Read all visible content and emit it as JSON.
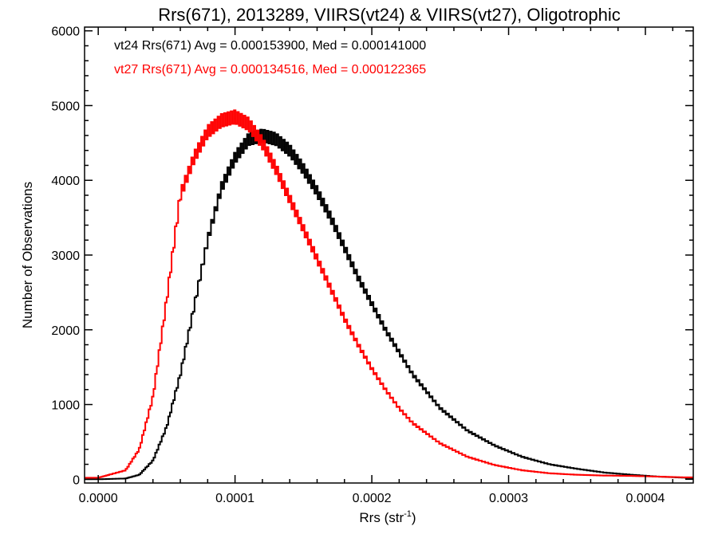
{
  "chart_data": {
    "type": "histogram",
    "title": "Rrs(671), 2013289, VIIRS(vt24) & VIIRS(vt27), Oligotrophic",
    "xlabel_main": "Rrs (str",
    "xlabel_sup": "-1",
    "xlabel_close": ")",
    "ylabel": "Number of Observations",
    "xlim": [
      -1e-05,
      0.000435
    ],
    "ylim": [
      -50,
      6050
    ],
    "x_ticks": [
      0.0,
      0.0001,
      0.0002,
      0.0003,
      0.0004
    ],
    "x_tick_labels": [
      "0.0000",
      "0.0001",
      "0.0002",
      "0.0003",
      "0.0004"
    ],
    "y_ticks": [
      0,
      1000,
      2000,
      3000,
      4000,
      5000,
      6000
    ],
    "y_tick_labels": [
      "0",
      "1000",
      "2000",
      "3000",
      "4000",
      "5000",
      "6000"
    ],
    "annotations": [
      {
        "text": "vt24 Rrs(671) Avg = 0.000153900, Med = 0.000141000",
        "color": "#000000"
      },
      {
        "text": "vt27 Rrs(671) Avg = 0.000134516, Med = 0.000122365",
        "color": "#ff0000"
      }
    ],
    "series": [
      {
        "color": "#000000",
        "x": [
          0.0,
          2e-05,
          3e-05,
          4e-05,
          5e-05,
          6e-05,
          7e-05,
          8e-05,
          9e-05,
          0.0001,
          0.00011,
          0.00012,
          0.00013,
          0.00014,
          0.00015,
          0.00016,
          0.00017,
          0.00018,
          0.00019,
          0.0002,
          0.00021,
          0.00022,
          0.00023,
          0.00025,
          0.00027,
          0.00029,
          0.00031,
          0.00033,
          0.00035,
          0.00037,
          0.00039,
          0.00041,
          0.00043
        ],
        "y": [
          0,
          10,
          60,
          250,
          700,
          1400,
          2300,
          3200,
          3900,
          4300,
          4550,
          4600,
          4550,
          4400,
          4150,
          3850,
          3500,
          3100,
          2700,
          2350,
          2000,
          1700,
          1400,
          950,
          650,
          450,
          300,
          200,
          140,
          90,
          60,
          35,
          20
        ]
      },
      {
        "color": "#ff0000",
        "x": [
          0.0,
          2e-05,
          3e-05,
          4e-05,
          5e-05,
          6e-05,
          7e-05,
          8e-05,
          9e-05,
          0.0001,
          0.00011,
          0.00012,
          0.00013,
          0.00014,
          0.00015,
          0.00016,
          0.00017,
          0.00018,
          0.00019,
          0.0002,
          0.00021,
          0.00022,
          0.00023,
          0.00025,
          0.00027,
          0.00029,
          0.00031,
          0.00033,
          0.00035,
          0.00037,
          0.00039,
          0.00041,
          0.00043
        ],
        "y": [
          20,
          120,
          400,
          1100,
          2400,
          3800,
          4300,
          4650,
          4800,
          4850,
          4750,
          4500,
          4150,
          3750,
          3350,
          2950,
          2550,
          2150,
          1800,
          1480,
          1200,
          950,
          750,
          480,
          300,
          190,
          120,
          80,
          60,
          50,
          45,
          35,
          25
        ]
      }
    ],
    "grid": false,
    "legend": "none"
  }
}
